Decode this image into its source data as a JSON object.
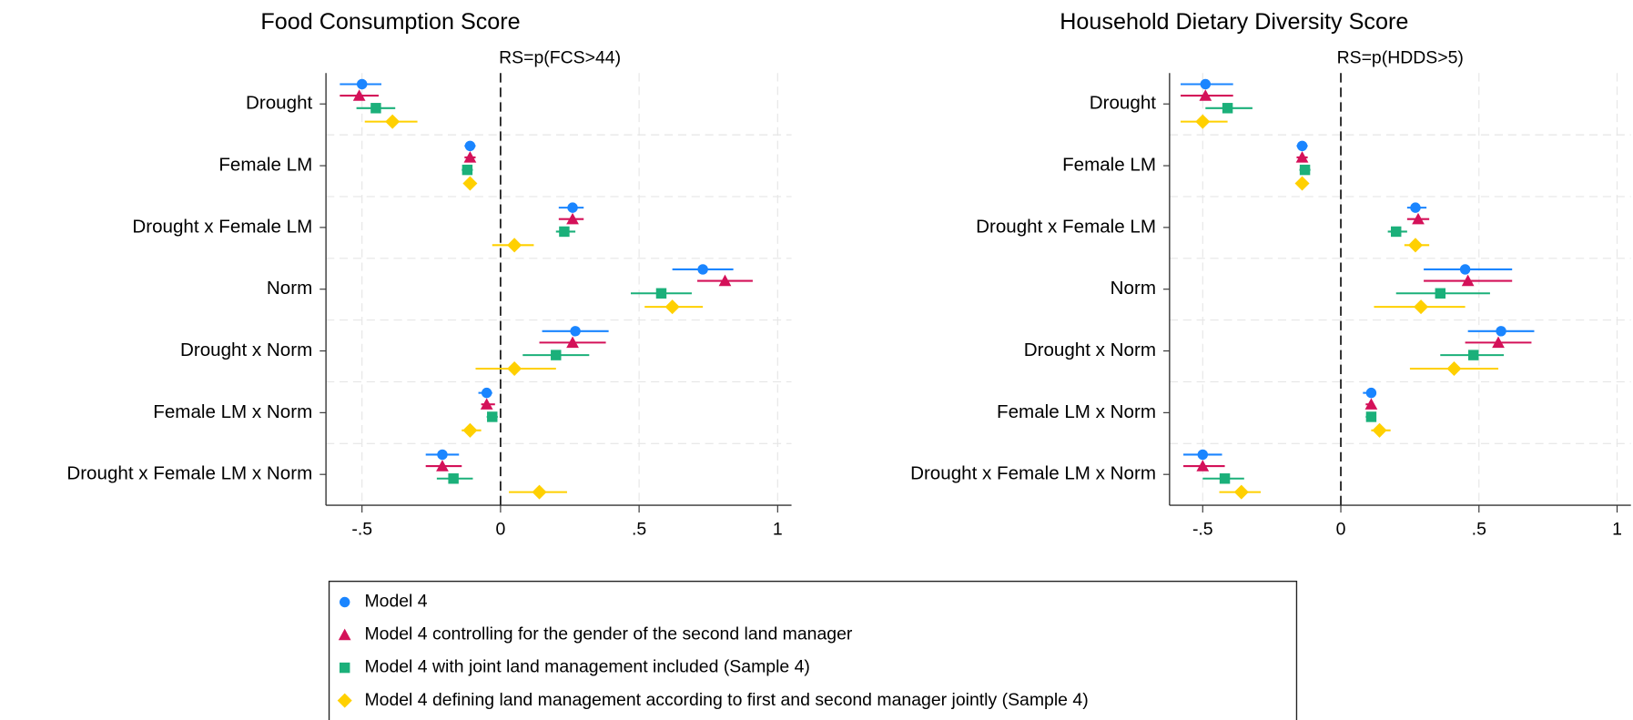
{
  "chart_data": [
    {
      "type": "coefplot",
      "title": "Food Consumption Score",
      "annotation": "RS=p(FCS>44)",
      "categories": [
        "Drought",
        "Female LM",
        "Drought x Female LM",
        "Norm",
        "Drought x Norm",
        "Female LM x Norm",
        "Drought x Female LM x Norm"
      ],
      "xlim": [
        -0.63,
        1.05
      ],
      "xticks": [
        {
          "value": -0.5,
          "label": "-.5"
        },
        0,
        {
          "value": 0.5,
          "label": ".5"
        },
        1
      ],
      "grid": true,
      "series": [
        {
          "name": "Model 4",
          "color": "#1a85ff",
          "marker": "circle",
          "values": [
            -0.5,
            -0.11,
            0.26,
            0.73,
            0.27,
            -0.05,
            -0.21
          ],
          "ci_low": [
            -0.58,
            -0.13,
            0.21,
            0.62,
            0.15,
            -0.08,
            -0.27
          ],
          "ci_high": [
            -0.43,
            -0.09,
            0.3,
            0.84,
            0.39,
            -0.03,
            -0.15
          ]
        },
        {
          "name": "Model 4 controlling for the gender of the second land manager",
          "color": "#d41159",
          "marker": "triangle",
          "values": [
            -0.51,
            -0.11,
            0.26,
            0.81,
            0.26,
            -0.05,
            -0.21
          ],
          "ci_low": [
            -0.58,
            -0.13,
            0.21,
            0.71,
            0.14,
            -0.07,
            -0.27
          ],
          "ci_high": [
            -0.44,
            -0.09,
            0.3,
            0.91,
            0.38,
            -0.02,
            -0.14
          ]
        },
        {
          "name": "Model 4 with joint land management included (Sample 4)",
          "color": "#1bb07a",
          "marker": "square",
          "values": [
            -0.45,
            -0.12,
            0.23,
            0.58,
            0.2,
            -0.03,
            -0.17
          ],
          "ci_low": [
            -0.52,
            -0.14,
            0.2,
            0.47,
            0.08,
            -0.05,
            -0.23
          ],
          "ci_high": [
            -0.38,
            -0.1,
            0.27,
            0.69,
            0.32,
            -0.01,
            -0.1
          ]
        },
        {
          "name": "Model 4 defining land management according to first and second manager jointly (Sample 4)",
          "color": "#ffd000",
          "marker": "diamond",
          "values": [
            -0.39,
            -0.11,
            0.05,
            0.62,
            0.05,
            -0.11,
            0.14
          ],
          "ci_low": [
            -0.49,
            -0.13,
            -0.03,
            0.52,
            -0.09,
            -0.14,
            0.03
          ],
          "ci_high": [
            -0.3,
            -0.09,
            0.12,
            0.73,
            0.2,
            -0.07,
            0.24
          ]
        }
      ]
    },
    {
      "type": "coefplot",
      "title": "Household Dietary Diversity Score",
      "annotation": "RS=p(HDDS>5)",
      "categories": [
        "Drought",
        "Female LM",
        "Drought x Female LM",
        "Norm",
        "Drought x Norm",
        "Female LM x Norm",
        "Drought x Female LM x Norm"
      ],
      "xlim": [
        -0.62,
        1.05
      ],
      "xticks": [
        {
          "value": -0.5,
          "label": "-.5"
        },
        0,
        {
          "value": 0.5,
          "label": ".5"
        },
        1
      ],
      "grid": true,
      "series": [
        {
          "color": "#1a85ff",
          "marker": "circle",
          "values": [
            -0.49,
            -0.14,
            0.27,
            0.45,
            0.58,
            0.11,
            -0.5
          ],
          "ci_low": [
            -0.58,
            -0.16,
            0.24,
            0.3,
            0.46,
            0.08,
            -0.57
          ],
          "ci_high": [
            -0.39,
            -0.12,
            0.31,
            0.62,
            0.7,
            0.12,
            -0.43
          ]
        },
        {
          "color": "#d41159",
          "marker": "triangle",
          "values": [
            -0.49,
            -0.14,
            0.28,
            0.46,
            0.57,
            0.11,
            -0.5
          ],
          "ci_low": [
            -0.58,
            -0.16,
            0.24,
            0.3,
            0.45,
            0.09,
            -0.57
          ],
          "ci_high": [
            -0.39,
            -0.12,
            0.32,
            0.62,
            0.69,
            0.12,
            -0.42
          ]
        },
        {
          "color": "#1bb07a",
          "marker": "square",
          "values": [
            -0.41,
            -0.13,
            0.2,
            0.36,
            0.48,
            0.11,
            -0.42
          ],
          "ci_low": [
            -0.49,
            -0.15,
            0.17,
            0.2,
            0.36,
            0.09,
            -0.5
          ],
          "ci_high": [
            -0.32,
            -0.11,
            0.24,
            0.54,
            0.59,
            0.12,
            -0.35
          ]
        },
        {
          "color": "#ffd000",
          "marker": "diamond",
          "values": [
            -0.5,
            -0.14,
            0.27,
            0.29,
            0.41,
            0.14,
            -0.36
          ],
          "ci_low": [
            -0.58,
            -0.16,
            0.23,
            0.12,
            0.25,
            0.11,
            -0.44
          ],
          "ci_high": [
            -0.41,
            -0.12,
            0.32,
            0.45,
            0.57,
            0.18,
            -0.29
          ]
        }
      ]
    }
  ]
}
